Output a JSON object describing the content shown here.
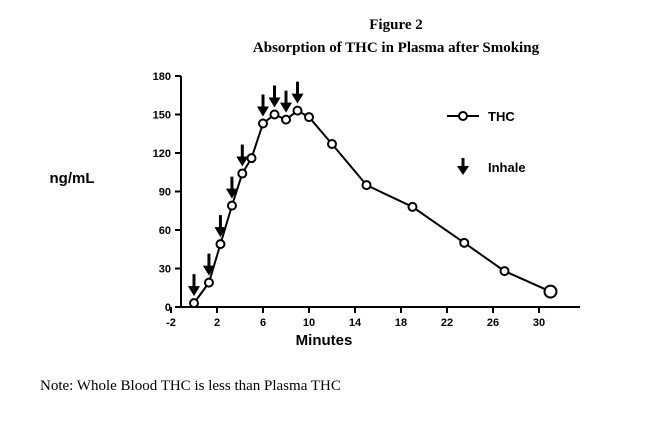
{
  "chart_data": {
    "type": "line",
    "title": "Figure 2",
    "subtitle": "Absorption of THC in Plasma after Smoking",
    "xlabel": "Minutes",
    "ylabel": "ng/mL",
    "xlim": [
      -2,
      32
    ],
    "ylim": [
      0,
      180
    ],
    "x_ticks": [
      -2,
      2,
      6,
      10,
      14,
      18,
      22,
      26,
      30
    ],
    "y_ticks": [
      0,
      30,
      60,
      90,
      120,
      150,
      180
    ],
    "legend_position": "top-right",
    "series": [
      {
        "name": "THC",
        "x": [
          0,
          1.3,
          2.3,
          3.3,
          4.2,
          5.0,
          6.0,
          7.0,
          8.0,
          9.0,
          10.0,
          12.0,
          15.0,
          19.0,
          23.5,
          27.0,
          31.0
        ],
        "y": [
          3,
          19,
          49,
          79,
          104,
          116,
          143,
          150,
          146,
          153,
          148,
          127,
          95,
          78,
          50,
          28,
          12
        ]
      }
    ],
    "inhale_markers": {
      "name": "Inhale",
      "x": [
        0,
        1.3,
        2.3,
        3.3,
        4.2,
        6.0,
        7.0,
        8.0,
        9.0
      ]
    }
  },
  "note": "Note:  Whole Blood THC is less than Plasma THC"
}
